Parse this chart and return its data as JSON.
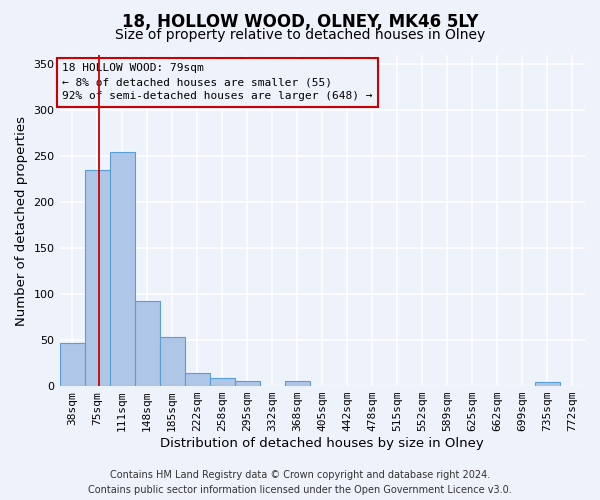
{
  "title": "18, HOLLOW WOOD, OLNEY, MK46 5LY",
  "subtitle": "Size of property relative to detached houses in Olney",
  "xlabel": "Distribution of detached houses by size in Olney",
  "ylabel": "Number of detached properties",
  "categories": [
    "38sqm",
    "75sqm",
    "111sqm",
    "148sqm",
    "185sqm",
    "222sqm",
    "258sqm",
    "295sqm",
    "332sqm",
    "368sqm",
    "405sqm",
    "442sqm",
    "478sqm",
    "515sqm",
    "552sqm",
    "589sqm",
    "625sqm",
    "662sqm",
    "699sqm",
    "735sqm",
    "772sqm"
  ],
  "values": [
    47,
    235,
    255,
    93,
    53,
    14,
    9,
    5,
    0,
    5,
    0,
    0,
    0,
    0,
    0,
    0,
    0,
    0,
    0,
    4,
    0
  ],
  "bar_color": "#aec6e8",
  "bar_edgecolor": "#5a9fd4",
  "bar_linewidth": 0.8,
  "vline_x": 1.08,
  "vline_color": "#cc0000",
  "ylim": [
    0,
    360
  ],
  "yticks": [
    0,
    50,
    100,
    150,
    200,
    250,
    300,
    350
  ],
  "annotation_text": "18 HOLLOW WOOD: 79sqm\n← 8% of detached houses are smaller (55)\n92% of semi-detached houses are larger (648) →",
  "annotation_box_color": "#cc0000",
  "annotation_text_color": "#000000",
  "footer_line1": "Contains HM Land Registry data © Crown copyright and database right 2024.",
  "footer_line2": "Contains public sector information licensed under the Open Government Licence v3.0.",
  "background_color": "#eef2fb",
  "grid_color": "#ffffff",
  "title_fontsize": 12,
  "subtitle_fontsize": 10,
  "axis_label_fontsize": 9.5,
  "tick_fontsize": 8,
  "annotation_fontsize": 8,
  "footer_fontsize": 7
}
